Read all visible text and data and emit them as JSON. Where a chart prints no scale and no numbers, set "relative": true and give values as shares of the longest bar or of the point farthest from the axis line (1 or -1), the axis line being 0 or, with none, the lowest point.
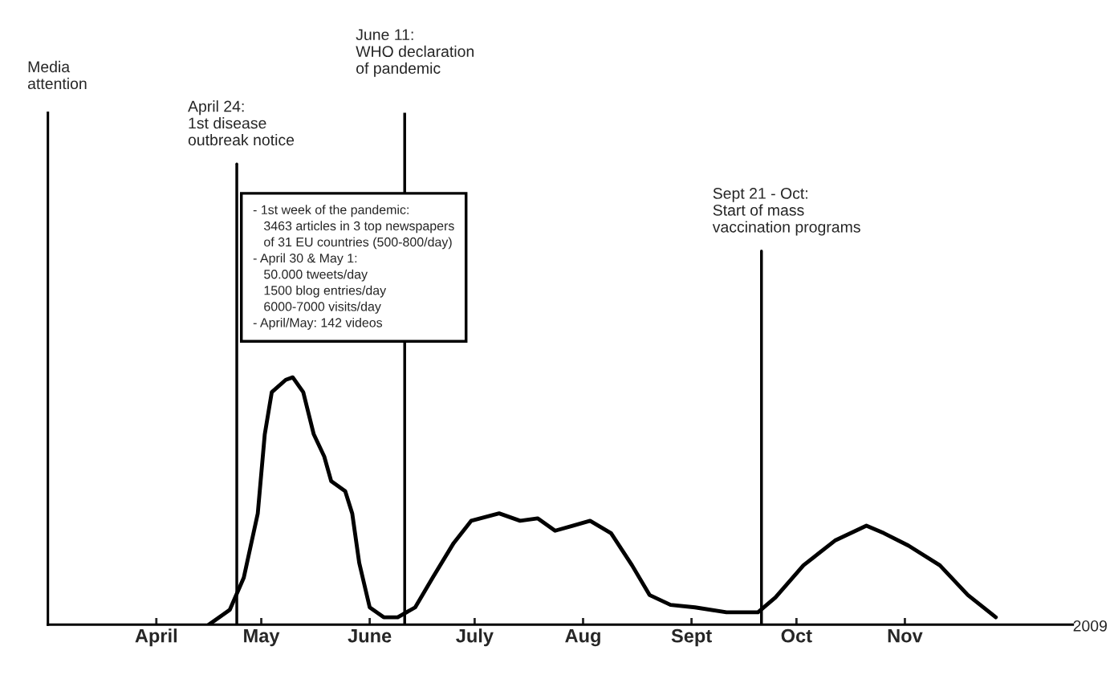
{
  "chart_data": {
    "type": "line",
    "relative": true,
    "xlabel": "2009",
    "xlim": [
      "2009-03-01",
      "2009-12-19"
    ],
    "xticks": [
      {
        "value": "2009-04-01",
        "label": "April"
      },
      {
        "value": "2009-05-01",
        "label": "May"
      },
      {
        "value": "2009-06-01",
        "label": "June"
      },
      {
        "value": "2009-07-01",
        "label": "July"
      },
      {
        "value": "2009-08-01",
        "label": "Aug"
      },
      {
        "value": "2009-09-01",
        "label": "Sept"
      },
      {
        "value": "2009-10-01",
        "label": "Oct"
      },
      {
        "value": "2009-11-01",
        "label": "Nov"
      }
    ],
    "series": [
      {
        "color": "#000000",
        "x": [
          "2009-04-16",
          "2009-04-22",
          "2009-04-26",
          "2009-04-30",
          "2009-05-02",
          "2009-05-04",
          "2009-05-08",
          "2009-05-10",
          "2009-05-13",
          "2009-05-16",
          "2009-05-19",
          "2009-05-21",
          "2009-05-25",
          "2009-05-27",
          "2009-05-29",
          "2009-06-01",
          "2009-06-05",
          "2009-06-09",
          "2009-06-14",
          "2009-06-19",
          "2009-06-25",
          "2009-06-30",
          "2009-07-08",
          "2009-07-14",
          "2009-07-19",
          "2009-07-24",
          "2009-07-29",
          "2009-08-03",
          "2009-08-09",
          "2009-08-15",
          "2009-08-20",
          "2009-08-26",
          "2009-09-02",
          "2009-09-11",
          "2009-09-20",
          "2009-09-25",
          "2009-10-03",
          "2009-10-12",
          "2009-10-21",
          "2009-10-26",
          "2009-11-02",
          "2009-11-11",
          "2009-11-19",
          "2009-11-27"
        ],
        "values": [
          0,
          0.06,
          0.19,
          0.45,
          0.77,
          0.94,
          0.99,
          1.0,
          0.94,
          0.77,
          0.68,
          0.58,
          0.54,
          0.45,
          0.25,
          0.07,
          0.03,
          0.03,
          0.07,
          0.19,
          0.33,
          0.42,
          0.45,
          0.42,
          0.43,
          0.38,
          0.4,
          0.42,
          0.37,
          0.24,
          0.12,
          0.08,
          0.07,
          0.05,
          0.05,
          0.11,
          0.24,
          0.34,
          0.4,
          0.37,
          0.32,
          0.24,
          0.12,
          0.03
        ]
      }
    ],
    "ref_lines": [
      {
        "axis": "x",
        "value": "2009-04-24",
        "label": "April 24:\n1st disease\noutbreak notice",
        "color": "#000000"
      },
      {
        "axis": "x",
        "value": "2009-06-11",
        "label": "June 11:\nWHO declaration\nof pandemic",
        "color": "#000000"
      },
      {
        "axis": "x",
        "value": "2009-09-21",
        "label": "Sept 21 - Oct:\nStart of mass\nvaccination programs",
        "color": "#000000"
      }
    ],
    "annotations": [
      "Media\nattention",
      "- 1st week of the pandemic:\n   3463 articles in 3 top newspapers\n   of 31 EU countries (500-800/day)\n- April 30 & May 1:\n   50.000 tweets/day\n   1500 blog entries/day\n   6000-7000 visits/day\n- April/May: 142 videos"
    ],
    "marker": "none",
    "line_style": "solid",
    "grid": false,
    "legend": false
  }
}
